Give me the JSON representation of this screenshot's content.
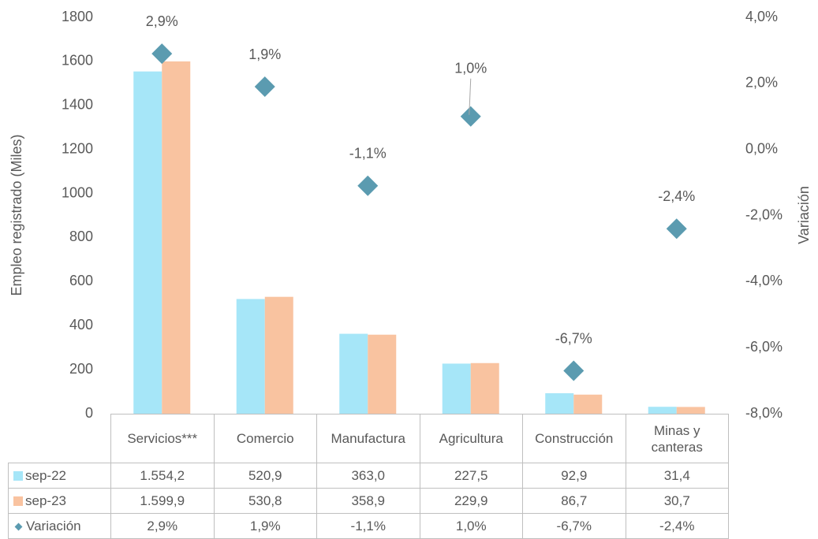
{
  "chart_data": {
    "type": "bar",
    "categories": [
      "Servicios***",
      "Comercio",
      "Manufactura",
      "Agricultura",
      "Construcción",
      "Minas y canteras"
    ],
    "series": [
      {
        "name": "sep-22",
        "color": "#a6e6f8",
        "values": [
          1554.2,
          520.9,
          363.0,
          227.5,
          92.9,
          31.4
        ],
        "value_labels": [
          "1.554,2",
          "520,9",
          "363,0",
          "227,5",
          "92,9",
          "31,4"
        ]
      },
      {
        "name": "sep-23",
        "color": "#f9c3a0",
        "values": [
          1599.9,
          530.8,
          358.9,
          229.9,
          86.7,
          30.7
        ],
        "value_labels": [
          "1.599,9",
          "530,8",
          "358,9",
          "229,9",
          "86,7",
          "30,7"
        ]
      },
      {
        "name": "Variación",
        "type": "scatter",
        "axis": "y2",
        "color": "#5b9bb0",
        "values": [
          2.9,
          1.9,
          -1.1,
          1.0,
          -6.7,
          -2.4
        ],
        "value_labels": [
          "2,9%",
          "1,9%",
          "-1,1%",
          "1,0%",
          "-6,7%",
          "-2,4%"
        ]
      }
    ],
    "ylabel": "Empleo registrado (Miles)",
    "y2label": "Variación",
    "ylim": [
      0,
      1800
    ],
    "yticks": [
      0,
      200,
      400,
      600,
      800,
      1000,
      1200,
      1400,
      1600,
      1800
    ],
    "y2lim": [
      -8,
      4
    ],
    "y2ticks": [
      {
        "value": -8,
        "label": "-8,0%"
      },
      {
        "value": -6,
        "label": "-6,0%"
      },
      {
        "value": -4,
        "label": "-4,0%"
      },
      {
        "value": -2,
        "label": "-2,0%"
      },
      {
        "value": 0,
        "label": "0,0%"
      },
      {
        "value": 2,
        "label": "2,0%"
      },
      {
        "value": 4,
        "label": "4,0%"
      }
    ],
    "grid": false
  }
}
